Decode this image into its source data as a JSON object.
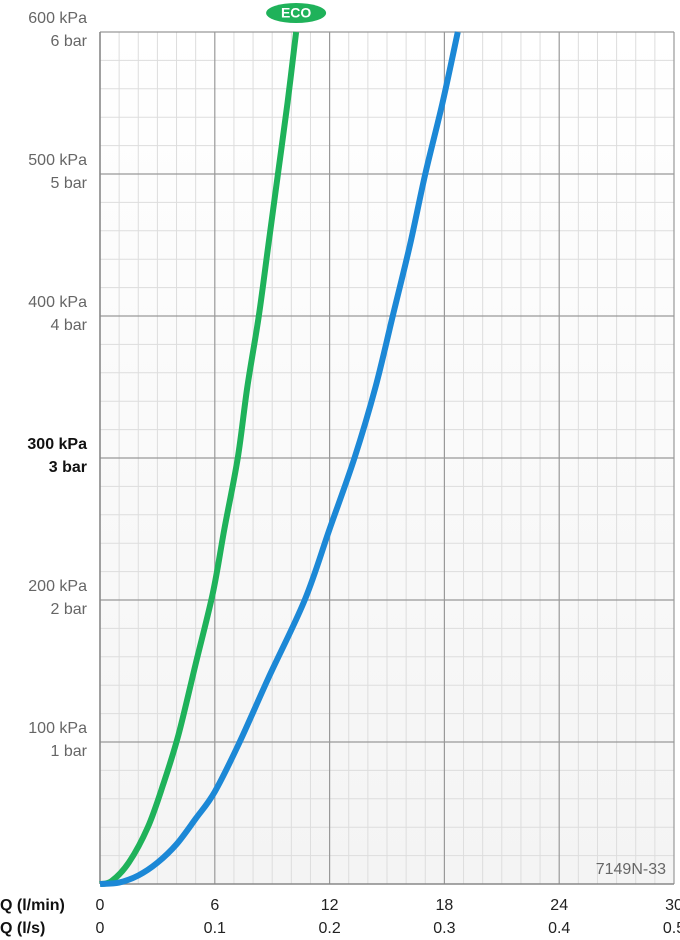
{
  "chart_data": {
    "type": "line",
    "xlabel": "Q (l/min)",
    "x2label": "Q (l/s)",
    "xlim": [
      0,
      30
    ],
    "xticks": [
      0,
      6,
      12,
      18,
      24,
      30
    ],
    "x2lim": [
      0,
      0.5
    ],
    "x2ticks": [
      0,
      0.1,
      0.2,
      0.3,
      0.4,
      0.5
    ],
    "ylim": [
      0,
      600
    ],
    "yticks": [
      {
        "value": 100,
        "label": "100 kPa"
      },
      {
        "value": 200,
        "label": "200 kPa"
      },
      {
        "value": 300,
        "label": "300 kPa"
      },
      {
        "value": 400,
        "label": "400 kPa"
      },
      {
        "value": 500,
        "label": "500 kPa"
      },
      {
        "value": 600,
        "label": "600 kPa"
      }
    ],
    "y2lim": [
      0,
      6
    ],
    "y2ticks": [
      {
        "value": 1,
        "label": "1 bar"
      },
      {
        "value": 2,
        "label": "2 bar"
      },
      {
        "value": 3,
        "label": "3 bar"
      },
      {
        "value": 4,
        "label": "4 bar"
      },
      {
        "value": 5,
        "label": "5 bar"
      },
      {
        "value": 6,
        "label": "6 bar"
      }
    ],
    "bold_ytick_index": 2,
    "grid": true,
    "minor_xticks": [
      1,
      2,
      3,
      4,
      5,
      7,
      8,
      9,
      10,
      11,
      13,
      14,
      15,
      16,
      17,
      19,
      20,
      21,
      22,
      23,
      25,
      26,
      27,
      28,
      29
    ],
    "minor_yticks": [
      20,
      40,
      60,
      80,
      120,
      140,
      160,
      180,
      220,
      240,
      260,
      280,
      320,
      340,
      360,
      380,
      420,
      440,
      460,
      480,
      520,
      540,
      560,
      580
    ],
    "annotation": "7149N-33",
    "series": [
      {
        "name": "ECO",
        "color": "#1fb25a",
        "x": [
          0,
          0.6,
          1.5,
          2.5,
          3.3,
          4.1,
          5.0,
          5.9,
          6.5,
          7.2,
          7.7,
          8.3,
          8.8,
          9.3,
          9.8,
          10.25
        ],
        "values": [
          0,
          2,
          15,
          40,
          70,
          105,
          155,
          205,
          250,
          300,
          350,
          400,
          450,
          500,
          550,
          600
        ]
      },
      {
        "name": null,
        "color": "#1c88d6",
        "x": [
          0,
          1,
          2,
          3,
          4,
          5,
          6,
          7.3,
          8.8,
          10.7,
          12,
          13.3,
          14.4,
          15.3,
          16.2,
          17.0,
          17.9,
          18.7
        ],
        "values": [
          0,
          1,
          6,
          15,
          28,
          46,
          65,
          100,
          145,
          200,
          250,
          300,
          350,
          400,
          450,
          500,
          550,
          600
        ]
      }
    ]
  }
}
